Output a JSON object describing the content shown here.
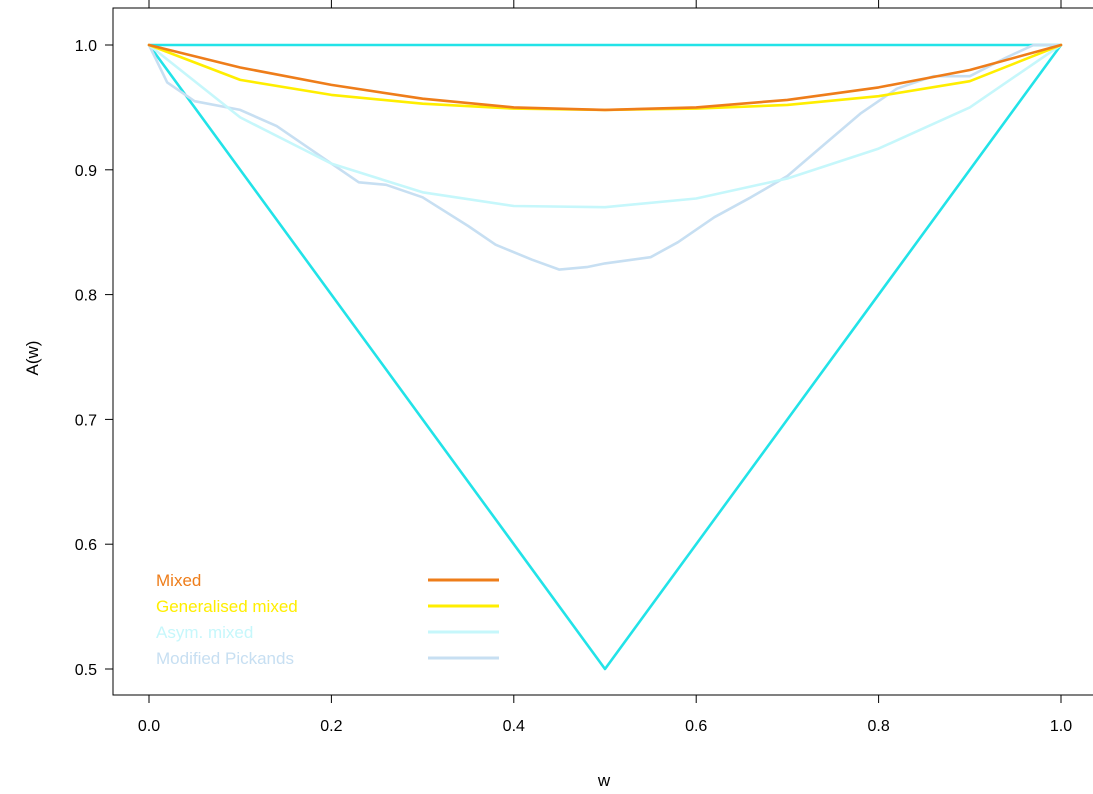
{
  "chart_data": {
    "type": "line",
    "xlabel": "w",
    "ylabel": "A(w)",
    "xlim": [
      -0.04,
      1.04
    ],
    "ylim": [
      0.48,
      1.02
    ],
    "x_ticks": [
      "0.0",
      "0.2",
      "0.4",
      "0.6",
      "0.8",
      "1.0"
    ],
    "y_ticks": [
      "0.5",
      "0.6",
      "0.7",
      "0.8",
      "0.9",
      "1.0"
    ],
    "grid": false,
    "legend_position": "bottom-left",
    "series": [
      {
        "name": "Mixed",
        "color": "#ee7d1a",
        "x": [
          0,
          0.1,
          0.2,
          0.3,
          0.4,
          0.5,
          0.6,
          0.7,
          0.8,
          0.9,
          1.0
        ],
        "y": [
          1.0,
          0.982,
          0.968,
          0.957,
          0.95,
          0.948,
          0.95,
          0.956,
          0.966,
          0.98,
          1.0
        ]
      },
      {
        "name": "Generalised mixed",
        "color": "#ffee00",
        "x": [
          0,
          0.1,
          0.2,
          0.3,
          0.4,
          0.5,
          0.6,
          0.7,
          0.8,
          0.9,
          1.0
        ],
        "y": [
          1.0,
          0.972,
          0.96,
          0.953,
          0.949,
          0.948,
          0.949,
          0.952,
          0.959,
          0.971,
          1.0
        ]
      },
      {
        "name": "Asym. mixed",
        "color": "#c6f7fb",
        "x": [
          0,
          0.1,
          0.2,
          0.3,
          0.4,
          0.5,
          0.6,
          0.7,
          0.8,
          0.9,
          1.0
        ],
        "y": [
          1.0,
          0.942,
          0.905,
          0.882,
          0.871,
          0.87,
          0.877,
          0.893,
          0.917,
          0.95,
          1.0
        ]
      },
      {
        "name": "Modified Pickands",
        "color": "#c7dff2",
        "x": [
          0,
          0.02,
          0.05,
          0.1,
          0.14,
          0.2,
          0.23,
          0.26,
          0.3,
          0.35,
          0.38,
          0.42,
          0.45,
          0.48,
          0.5,
          0.52,
          0.55,
          0.58,
          0.62,
          0.66,
          0.7,
          0.74,
          0.78,
          0.82,
          0.86,
          0.9,
          0.94,
          0.97,
          1.0
        ],
        "y": [
          1.0,
          0.97,
          0.955,
          0.948,
          0.935,
          0.905,
          0.89,
          0.888,
          0.878,
          0.855,
          0.84,
          0.828,
          0.82,
          0.822,
          0.825,
          0.827,
          0.83,
          0.842,
          0.862,
          0.878,
          0.895,
          0.92,
          0.945,
          0.965,
          0.975,
          0.975,
          0.99,
          1.0,
          1.0
        ]
      },
      {
        "name": "",
        "color": "#22e3e8",
        "x": [
          0,
          0.5,
          1.0,
          0
        ],
        "y": [
          1.0,
          0.5,
          1.0,
          1.0
        ]
      }
    ]
  }
}
